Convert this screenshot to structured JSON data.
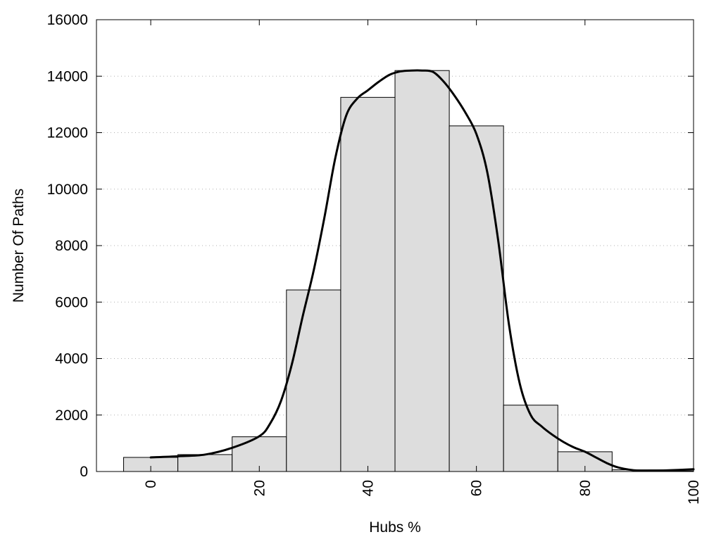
{
  "chart_data": {
    "type": "bar",
    "title": "",
    "xlabel": "Hubs %",
    "ylabel": "Number Of Paths",
    "xlim": [
      -10,
      100
    ],
    "ylim": [
      0,
      16000
    ],
    "x_ticks": [
      "0",
      "20",
      "40",
      "60",
      "80",
      "100"
    ],
    "x_tick_values": [
      0,
      20,
      40,
      60,
      80,
      100
    ],
    "y_ticks": [
      "0",
      "2000",
      "4000",
      "6000",
      "8000",
      "10000",
      "12000",
      "14000",
      "16000"
    ],
    "y_tick_values": [
      0,
      2000,
      4000,
      6000,
      8000,
      10000,
      12000,
      14000,
      16000
    ],
    "grid": "horizontal-dotted",
    "bin_width": 10,
    "bars": {
      "x": [
        0,
        10,
        20,
        30,
        40,
        50,
        60,
        70,
        80,
        90,
        100
      ],
      "values": [
        500,
        600,
        1230,
        6430,
        13250,
        14200,
        12240,
        2350,
        700,
        60,
        20
      ],
      "fill": "#dddddd"
    },
    "fit_curve": {
      "x": [
        0,
        5,
        10,
        15,
        20,
        22,
        24,
        26,
        28,
        30,
        32,
        34,
        36,
        38,
        40,
        42,
        44,
        46,
        48,
        50,
        52,
        54,
        56,
        58,
        60,
        62,
        64,
        66,
        68,
        70,
        72,
        74,
        76,
        78,
        80,
        82,
        84,
        86,
        88,
        90,
        92,
        95,
        100
      ],
      "y": [
        500,
        540,
        600,
        840,
        1250,
        1700,
        2500,
        3800,
        5500,
        7100,
        9000,
        11100,
        12600,
        13200,
        13500,
        13800,
        14050,
        14170,
        14200,
        14200,
        14150,
        13800,
        13300,
        12700,
        11950,
        10600,
        8200,
        5200,
        3100,
        2000,
        1600,
        1300,
        1050,
        850,
        700,
        500,
        300,
        150,
        70,
        30,
        30,
        40,
        80
      ],
      "color": "#000000"
    }
  }
}
